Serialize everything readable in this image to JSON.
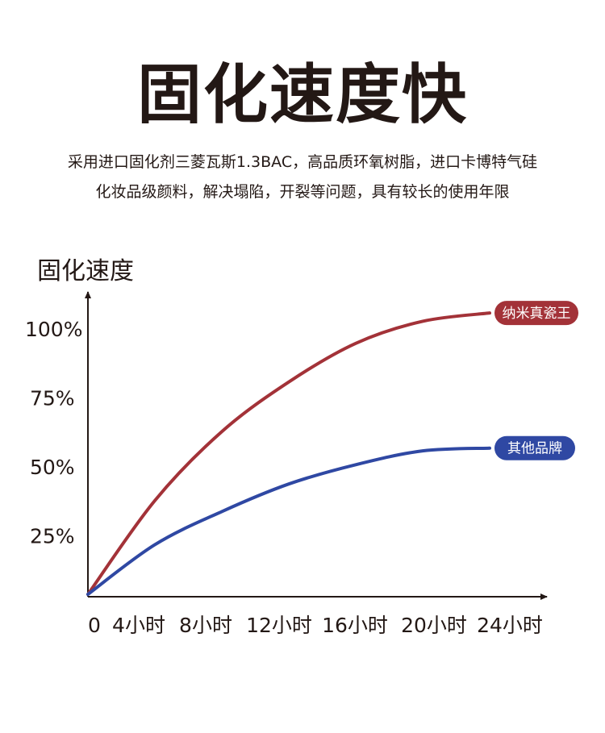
{
  "header": {
    "title": "固化速度快",
    "description_line1": "采用进口固化剂三菱瓦斯1.3BAC，高品质环氧树脂，进口卡博特气硅",
    "description_line2": "化妆品级颜料，解决塌陷，开裂等问题，具有较长的使用年限"
  },
  "chart_data": {
    "type": "line",
    "ylabel": "固化速度",
    "x_origin_label": "0",
    "categories": [
      "4小时",
      "8小时",
      "12小时",
      "16小时",
      "20小时",
      "24小时"
    ],
    "y_tick_labels": [
      "100%",
      "75%",
      "50%",
      "25%"
    ],
    "y_ticks": [
      100,
      75,
      50,
      25
    ],
    "ylim": [
      0,
      100
    ],
    "xlim": [
      0,
      24
    ],
    "grid": false,
    "series": [
      {
        "name": "纳米真瓷王",
        "color": "#a33238",
        "x": [
          0,
          4,
          8,
          12,
          16,
          20,
          24
        ],
        "values": [
          0,
          34,
          59,
          77,
          91,
          99,
          102
        ]
      },
      {
        "name": "其他品牌",
        "color": "#2f48a3",
        "x": [
          0,
          4,
          8,
          12,
          16,
          20,
          24
        ],
        "values": [
          0,
          18,
          30,
          40,
          47,
          52,
          53
        ]
      }
    ]
  }
}
